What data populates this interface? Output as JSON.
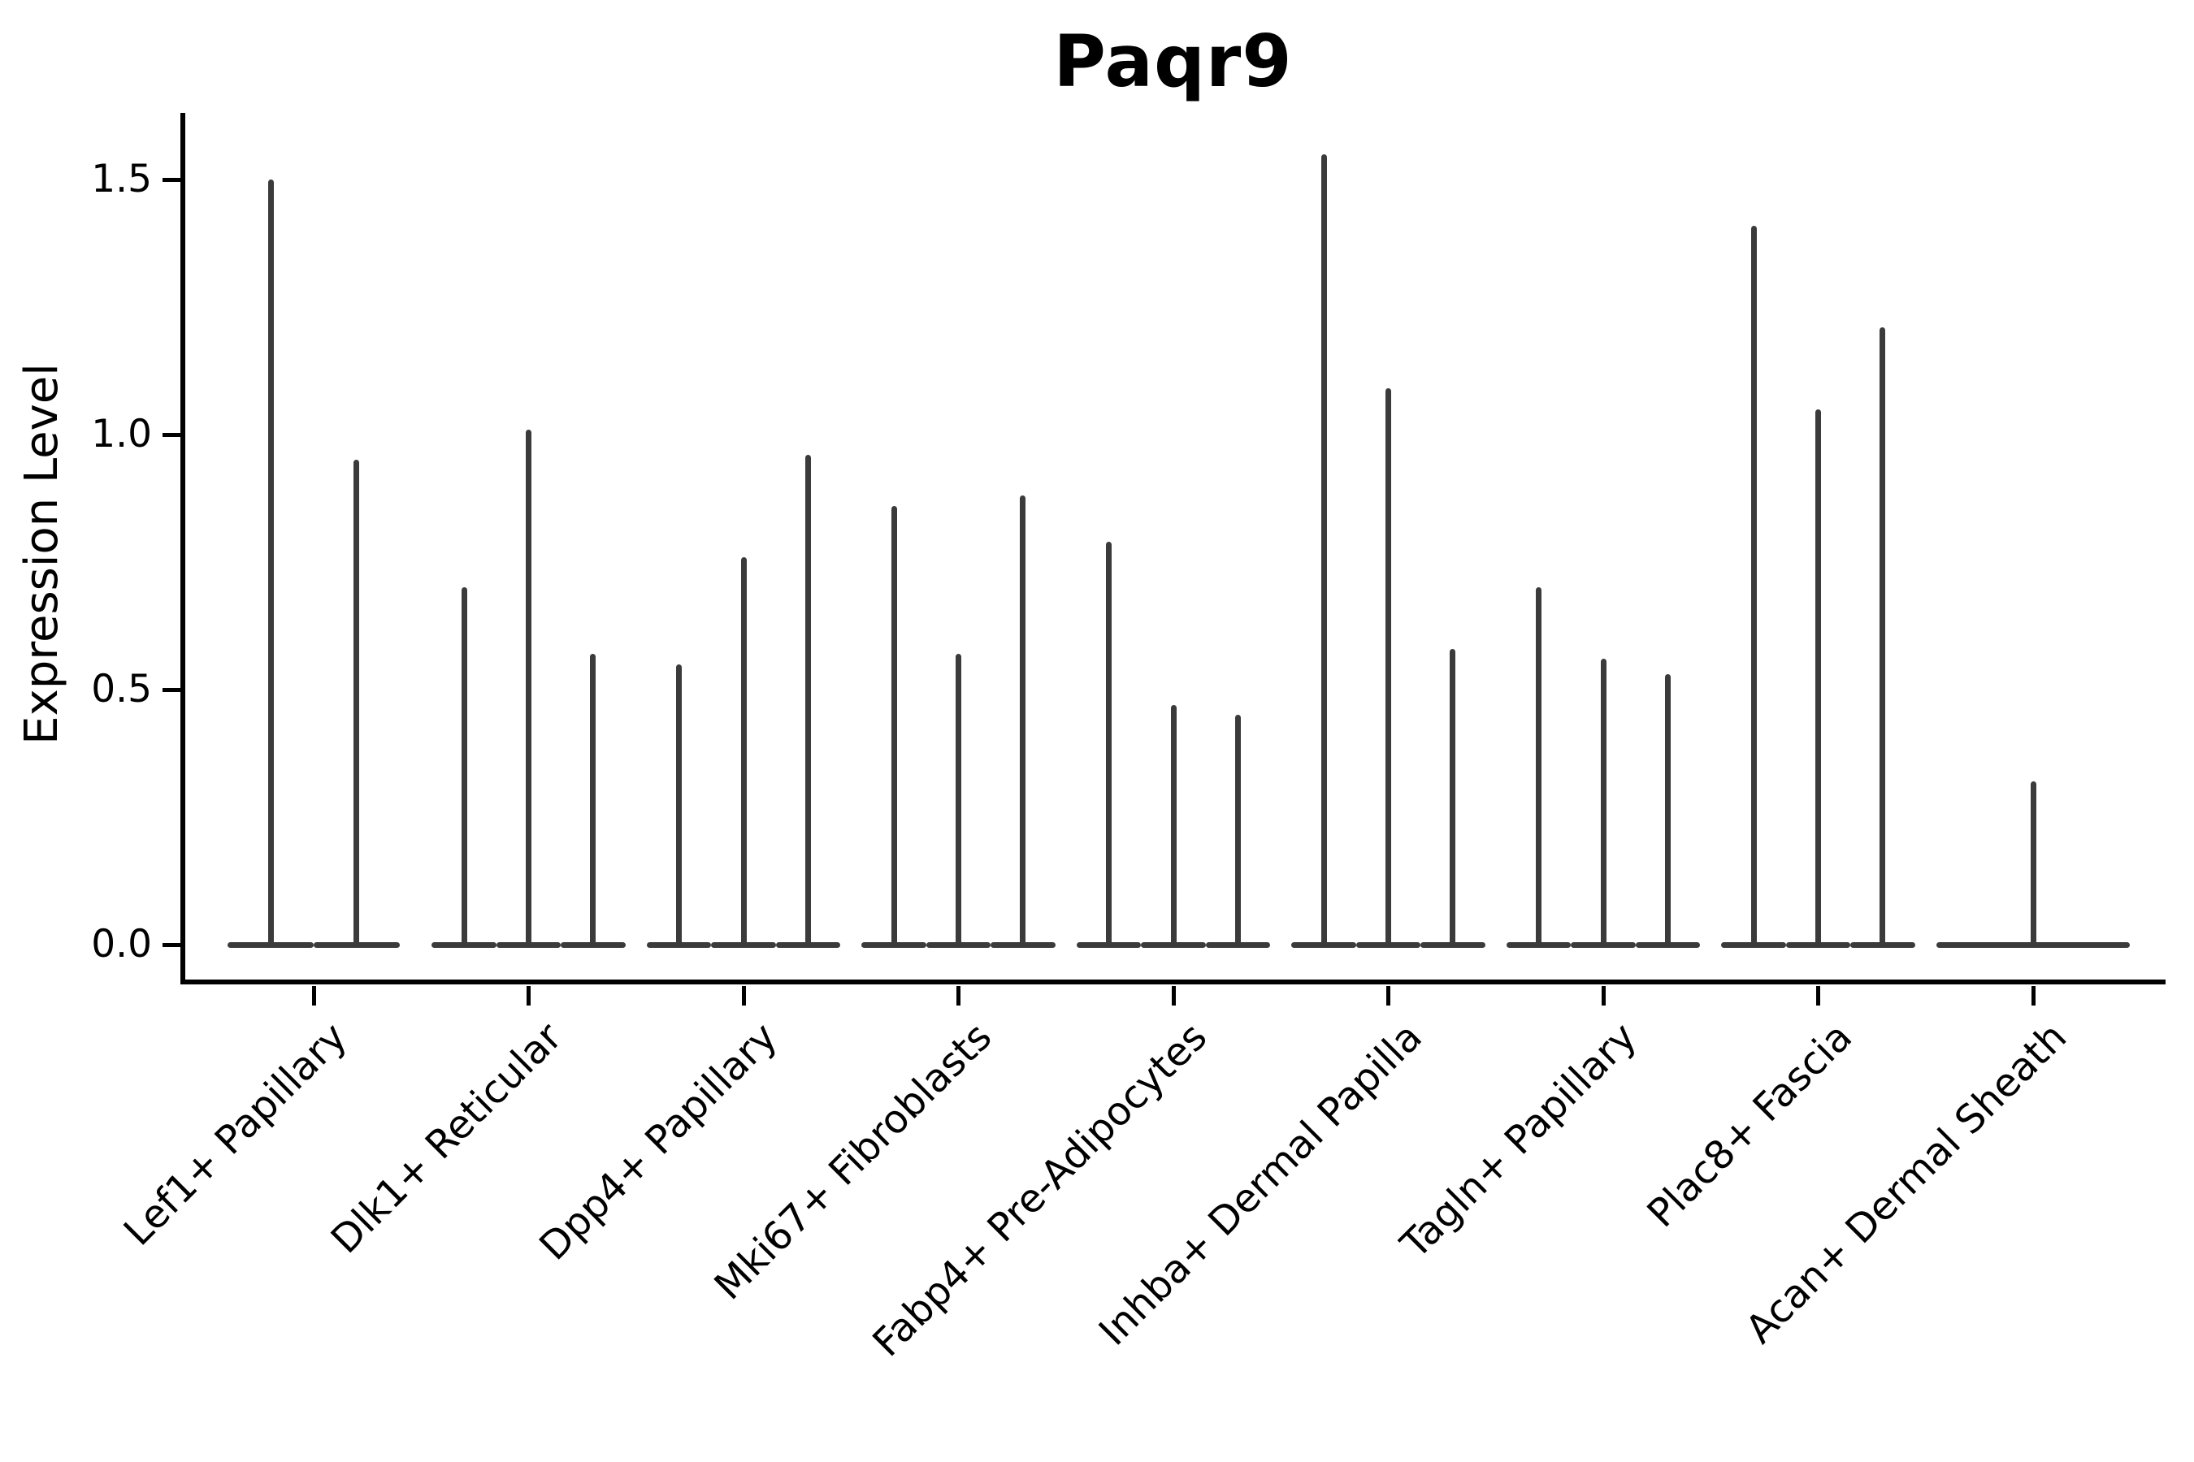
{
  "title": "Paqr9",
  "colors": {
    "violin": "#3b3b3b",
    "axis": "#000000",
    "text": "#000000",
    "background": "#ffffff"
  },
  "chart_data": {
    "type": "violin",
    "title": "Paqr9",
    "xlabel": "",
    "ylabel": "Expression Level",
    "ylim": [
      -0.08,
      1.63
    ],
    "yticks": [
      0.0,
      0.5,
      1.0,
      1.5
    ],
    "ytick_labels": [
      "0.0",
      "0.5",
      "1.0",
      "1.5"
    ],
    "grid": false,
    "legend_position": "none",
    "categories": [
      "Lef1+ Papillary",
      "Dlk1+ Reticular",
      "Dpp4+ Papillary",
      "Mki67+ Fibroblasts",
      "Fabp4+ Pre-Adipocytes",
      "Inhba+ Dermal Papilla",
      "Tagln+ Papillary",
      "Plac8+ Fascia",
      "Acan+ Dermal Sheath"
    ],
    "series": [
      {
        "category": "Lef1+ Papillary",
        "violins": [
          {
            "offset": -0.2,
            "width": 0.4,
            "max": 1.5
          },
          {
            "offset": 0.2,
            "width": 0.4,
            "max": 0.95
          }
        ]
      },
      {
        "category": "Dlk1+ Reticular",
        "violins": [
          {
            "offset": -0.3,
            "width": 0.3,
            "max": 0.7
          },
          {
            "offset": 0.0,
            "width": 0.3,
            "max": 1.01
          },
          {
            "offset": 0.3,
            "width": 0.3,
            "max": 0.57
          }
        ]
      },
      {
        "category": "Dpp4+ Papillary",
        "violins": [
          {
            "offset": -0.3,
            "width": 0.3,
            "max": 0.55
          },
          {
            "offset": 0.0,
            "width": 0.3,
            "max": 0.76
          },
          {
            "offset": 0.3,
            "width": 0.3,
            "max": 0.96
          }
        ]
      },
      {
        "category": "Mki67+ Fibroblasts",
        "violins": [
          {
            "offset": -0.3,
            "width": 0.3,
            "max": 0.86
          },
          {
            "offset": 0.0,
            "width": 0.3,
            "max": 0.57
          },
          {
            "offset": 0.3,
            "width": 0.3,
            "max": 0.88
          }
        ]
      },
      {
        "category": "Fabp4+ Pre-Adipocytes",
        "violins": [
          {
            "offset": -0.3,
            "width": 0.3,
            "max": 0.79
          },
          {
            "offset": 0.0,
            "width": 0.3,
            "max": 0.47
          },
          {
            "offset": 0.3,
            "width": 0.3,
            "max": 0.45
          }
        ]
      },
      {
        "category": "Inhba+ Dermal Papilla",
        "violins": [
          {
            "offset": -0.3,
            "width": 0.3,
            "max": 1.55
          },
          {
            "offset": 0.0,
            "width": 0.3,
            "max": 1.09
          },
          {
            "offset": 0.3,
            "width": 0.3,
            "max": 0.58
          }
        ]
      },
      {
        "category": "Tagln+ Papillary",
        "violins": [
          {
            "offset": -0.3,
            "width": 0.3,
            "max": 0.7
          },
          {
            "offset": 0.0,
            "width": 0.3,
            "max": 0.56
          },
          {
            "offset": 0.3,
            "width": 0.3,
            "max": 0.53
          }
        ]
      },
      {
        "category": "Plac8+ Fascia",
        "violins": [
          {
            "offset": -0.3,
            "width": 0.3,
            "max": 1.41
          },
          {
            "offset": 0.0,
            "width": 0.3,
            "max": 1.05
          },
          {
            "offset": 0.3,
            "width": 0.3,
            "max": 1.21
          }
        ]
      },
      {
        "category": "Acan+ Dermal Sheath",
        "violins": [
          {
            "offset": 0.0,
            "width": 0.9,
            "max": 0.32
          }
        ]
      }
    ]
  }
}
